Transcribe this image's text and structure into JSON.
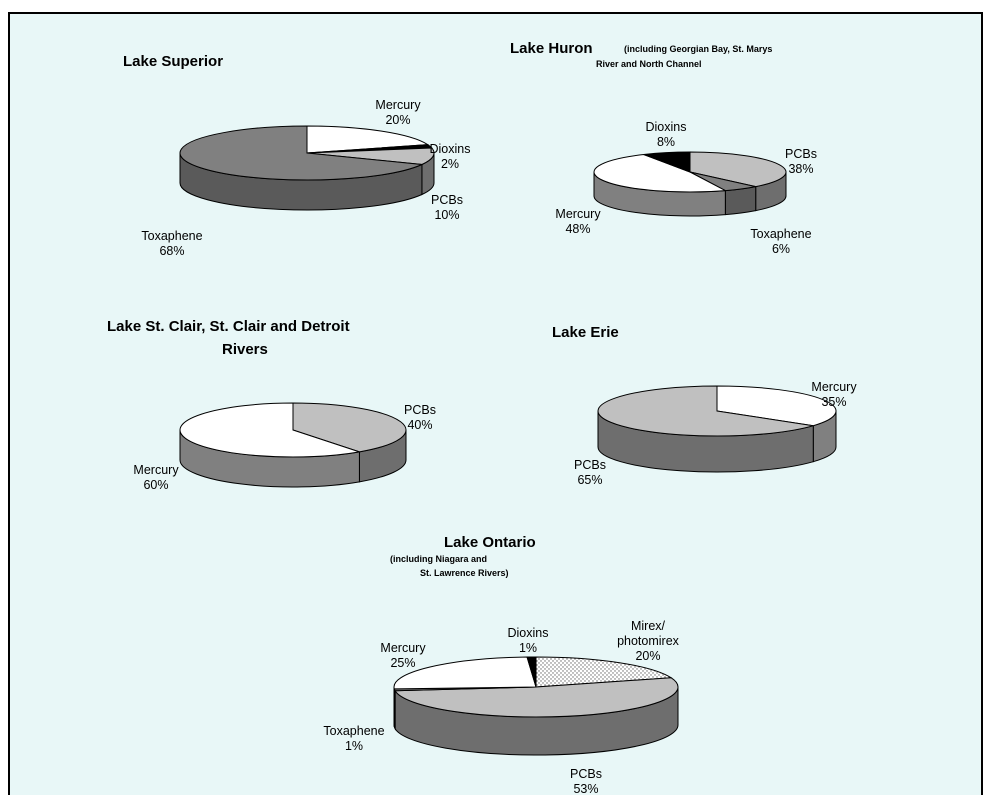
{
  "chart_data": [
    {
      "type": "pie",
      "title": "Lake Superior",
      "subtitle": "",
      "slices": [
        {
          "label": "Mercury",
          "value": 20,
          "display": "20%",
          "color": "#ffffff"
        },
        {
          "label": "Dioxins",
          "value": 2,
          "display": "2%",
          "color": "#000000"
        },
        {
          "label": "PCBs",
          "value": 10,
          "display": "10%",
          "color": "#c0c0c0"
        },
        {
          "label": "Toxaphene",
          "value": 68,
          "display": "68%",
          "color": "#808080"
        }
      ]
    },
    {
      "type": "pie",
      "title": "Lake Huron",
      "subtitle": "(including Georgian Bay, St. Marys River and North Channel",
      "slices": [
        {
          "label": "PCBs",
          "value": 38,
          "display": "38%",
          "color": "#c0c0c0"
        },
        {
          "label": "Toxaphene",
          "value": 6,
          "display": "6%",
          "color": "#808080"
        },
        {
          "label": "Mercury",
          "value": 48,
          "display": "48%",
          "color": "#ffffff"
        },
        {
          "label": "Dioxins",
          "value": 8,
          "display": "8%",
          "color": "#000000"
        }
      ]
    },
    {
      "type": "pie",
      "title": "Lake St. Clair, St. Clair and Detroit Rivers",
      "subtitle": "",
      "slices": [
        {
          "label": "PCBs",
          "value": 40,
          "display": "40%",
          "color": "#c0c0c0"
        },
        {
          "label": "Mercury",
          "value": 60,
          "display": "60%",
          "color": "#ffffff"
        }
      ]
    },
    {
      "type": "pie",
      "title": "Lake Erie",
      "subtitle": "",
      "slices": [
        {
          "label": "Mercury",
          "value": 35,
          "display": "35%",
          "color": "#ffffff"
        },
        {
          "label": "PCBs",
          "value": 65,
          "display": "65%",
          "color": "#c0c0c0"
        }
      ]
    },
    {
      "type": "pie",
      "title": "Lake Ontario",
      "subtitle": "(including Niagara and St. Lawrence Rivers)",
      "slices": [
        {
          "label": "Mirex/ photomirex",
          "value": 20,
          "display": "20%",
          "color": "#e0e0e0",
          "pattern": "dots"
        },
        {
          "label": "PCBs",
          "value": 53,
          "display": "53%",
          "color": "#c0c0c0"
        },
        {
          "label": "Toxaphene",
          "value": 1,
          "display": "1%",
          "color": "#808080"
        },
        {
          "label": "Mercury",
          "value": 25,
          "display": "25%",
          "color": "#ffffff"
        },
        {
          "label": "Dioxins",
          "value": 1,
          "display": "1%",
          "color": "#000000"
        }
      ]
    }
  ],
  "colors": {
    "background": "#e8f7f7",
    "side_shade": "darker"
  }
}
